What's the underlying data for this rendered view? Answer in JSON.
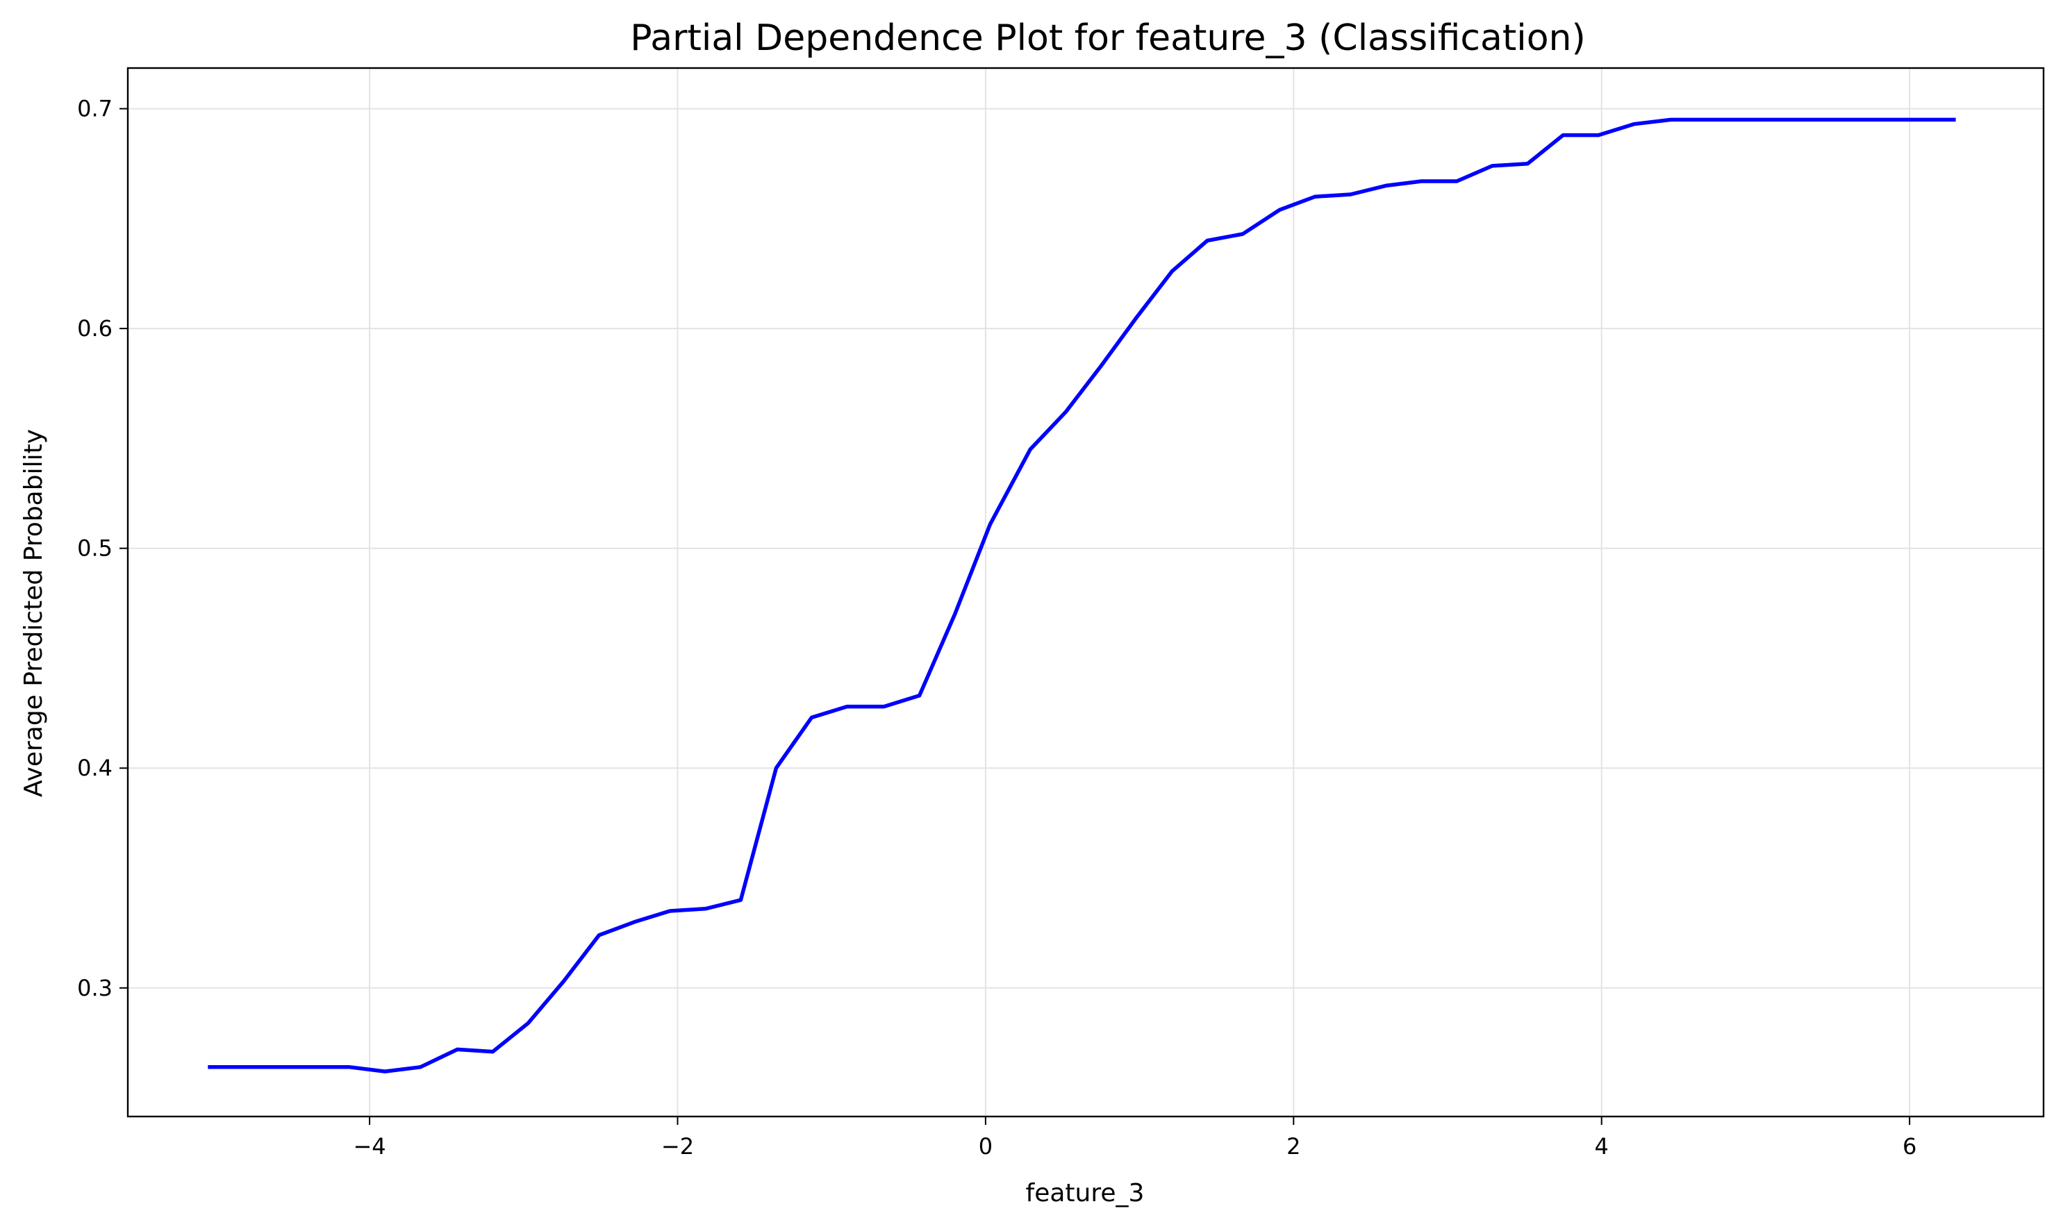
{
  "chart_data": {
    "type": "line",
    "title": "Partial Dependence Plot for feature_3 (Classification)",
    "xlabel": "feature_3",
    "ylabel": "Average Predicted Probability",
    "xlim": [
      -5.57,
      6.87
    ],
    "ylim": [
      0.2415,
      0.7185
    ],
    "grid": true,
    "x_ticks": [
      -4,
      -2,
      0,
      2,
      4,
      6
    ],
    "x_tick_labels": [
      "−4",
      "−2",
      "0",
      "2",
      "4",
      "6"
    ],
    "y_ticks": [
      0.3,
      0.4,
      0.5,
      0.6,
      0.7
    ],
    "y_tick_labels": [
      "0.3",
      "0.4",
      "0.5",
      "0.6",
      "0.7"
    ],
    "series": [
      {
        "color": "#0000ff",
        "x": [
          -5.05,
          -4.82,
          -4.59,
          -4.36,
          -4.13,
          -3.9,
          -3.67,
          -3.43,
          -3.2,
          -2.97,
          -2.74,
          -2.51,
          -2.28,
          -2.05,
          -1.82,
          -1.59,
          -1.36,
          -1.13,
          -0.9,
          -0.66,
          -0.43,
          -0.2,
          0.03,
          0.29,
          0.52,
          0.75,
          0.98,
          1.21,
          1.44,
          1.67,
          1.91,
          2.14,
          2.37,
          2.6,
          2.83,
          3.06,
          3.29,
          3.52,
          3.75,
          3.98,
          4.21,
          4.45,
          4.68,
          4.91,
          5.14,
          5.37,
          5.6,
          5.83,
          6.06,
          6.3
        ],
        "y": [
          0.264,
          0.264,
          0.264,
          0.264,
          0.264,
          0.262,
          0.264,
          0.272,
          0.271,
          0.284,
          0.303,
          0.324,
          0.33,
          0.335,
          0.336,
          0.34,
          0.4,
          0.423,
          0.428,
          0.428,
          0.433,
          0.47,
          0.511,
          0.545,
          0.562,
          0.583,
          0.605,
          0.626,
          0.64,
          0.643,
          0.654,
          0.66,
          0.661,
          0.665,
          0.667,
          0.667,
          0.674,
          0.675,
          0.688,
          0.688,
          0.693,
          0.695,
          0.695,
          0.695,
          0.695,
          0.695,
          0.695,
          0.695,
          0.695,
          0.695
        ]
      }
    ]
  }
}
